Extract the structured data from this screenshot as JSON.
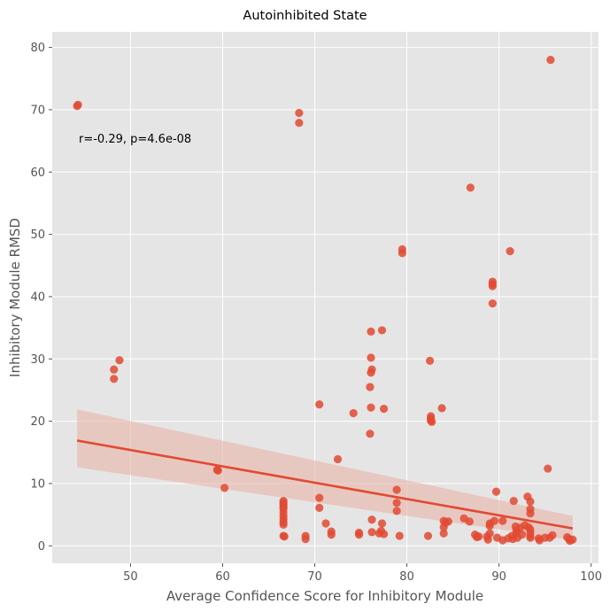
{
  "chart_data": {
    "type": "scatter",
    "title": "Autoinhibited State",
    "xlabel": "Average Confidence Score for Inhibitory Module",
    "ylabel": "Inhibitory Module RMSD",
    "xlim": [
      41.5,
      100.8
    ],
    "ylim": [
      -2.8,
      82.5
    ],
    "xticks": [
      50,
      60,
      70,
      80,
      90,
      100
    ],
    "yticks": [
      0,
      10,
      20,
      30,
      40,
      50,
      60,
      70,
      80
    ],
    "grid": true,
    "annotation": "r=-0.29, p=4.6e-08",
    "colors": {
      "background": "#e5e5e5",
      "grid": "#ffffff",
      "points": "#e24a33",
      "regression": "#e24a33",
      "confidence_band": "#e8b4a9"
    },
    "regression": {
      "x": [
        44.2,
        98.0
      ],
      "y": [
        16.9,
        2.8
      ],
      "ci_lower": [
        12.6,
        0.9
      ],
      "ci_upper": [
        21.9,
        4.8
      ]
    },
    "points": [
      {
        "x": 44.2,
        "y": 70.6
      },
      {
        "x": 44.3,
        "y": 70.8
      },
      {
        "x": 48.2,
        "y": 28.3
      },
      {
        "x": 48.2,
        "y": 26.8
      },
      {
        "x": 48.8,
        "y": 29.8
      },
      {
        "x": 59.4,
        "y": 12.2
      },
      {
        "x": 59.5,
        "y": 12.1
      },
      {
        "x": 60.2,
        "y": 9.3
      },
      {
        "x": 66.6,
        "y": 7.2
      },
      {
        "x": 66.6,
        "y": 6.9
      },
      {
        "x": 66.6,
        "y": 6.6
      },
      {
        "x": 66.6,
        "y": 6.3
      },
      {
        "x": 66.6,
        "y": 6.0
      },
      {
        "x": 66.6,
        "y": 5.4
      },
      {
        "x": 66.6,
        "y": 4.8
      },
      {
        "x": 66.6,
        "y": 4.3
      },
      {
        "x": 66.6,
        "y": 3.8
      },
      {
        "x": 66.6,
        "y": 3.4
      },
      {
        "x": 66.6,
        "y": 1.6
      },
      {
        "x": 66.7,
        "y": 1.5
      },
      {
        "x": 68.3,
        "y": 69.5
      },
      {
        "x": 68.3,
        "y": 67.9
      },
      {
        "x": 69.0,
        "y": 1.6
      },
      {
        "x": 69.0,
        "y": 1.1
      },
      {
        "x": 70.5,
        "y": 22.7
      },
      {
        "x": 70.5,
        "y": 7.7
      },
      {
        "x": 70.5,
        "y": 6.1
      },
      {
        "x": 71.2,
        "y": 3.6
      },
      {
        "x": 71.8,
        "y": 2.3
      },
      {
        "x": 71.8,
        "y": 1.8
      },
      {
        "x": 72.5,
        "y": 13.9
      },
      {
        "x": 74.2,
        "y": 21.3
      },
      {
        "x": 74.8,
        "y": 2.1
      },
      {
        "x": 74.8,
        "y": 1.8
      },
      {
        "x": 76.1,
        "y": 34.4
      },
      {
        "x": 76.1,
        "y": 30.2
      },
      {
        "x": 76.2,
        "y": 28.3
      },
      {
        "x": 76.1,
        "y": 27.8
      },
      {
        "x": 76.0,
        "y": 25.5
      },
      {
        "x": 76.1,
        "y": 22.2
      },
      {
        "x": 76.0,
        "y": 18.0
      },
      {
        "x": 76.2,
        "y": 4.2
      },
      {
        "x": 76.2,
        "y": 2.2
      },
      {
        "x": 77.3,
        "y": 34.6
      },
      {
        "x": 77.5,
        "y": 22.0
      },
      {
        "x": 77.3,
        "y": 3.6
      },
      {
        "x": 77.2,
        "y": 2.4
      },
      {
        "x": 77.0,
        "y": 2.0
      },
      {
        "x": 77.5,
        "y": 1.9
      },
      {
        "x": 78.9,
        "y": 9.0
      },
      {
        "x": 78.9,
        "y": 6.9
      },
      {
        "x": 78.9,
        "y": 5.6
      },
      {
        "x": 79.2,
        "y": 1.6
      },
      {
        "x": 79.5,
        "y": 47.6
      },
      {
        "x": 79.5,
        "y": 47.0
      },
      {
        "x": 82.3,
        "y": 1.6
      },
      {
        "x": 82.5,
        "y": 29.7
      },
      {
        "x": 82.6,
        "y": 20.8
      },
      {
        "x": 82.6,
        "y": 20.4
      },
      {
        "x": 82.6,
        "y": 20.1
      },
      {
        "x": 82.7,
        "y": 19.9
      },
      {
        "x": 83.8,
        "y": 22.1
      },
      {
        "x": 84.0,
        "y": 4.0
      },
      {
        "x": 84.2,
        "y": 3.7
      },
      {
        "x": 84.0,
        "y": 3.0
      },
      {
        "x": 84.0,
        "y": 2.0
      },
      {
        "x": 84.5,
        "y": 3.9
      },
      {
        "x": 86.2,
        "y": 4.4
      },
      {
        "x": 86.8,
        "y": 3.9
      },
      {
        "x": 86.9,
        "y": 57.5
      },
      {
        "x": 87.4,
        "y": 1.8
      },
      {
        "x": 87.6,
        "y": 1.4
      },
      {
        "x": 87.8,
        "y": 1.5
      },
      {
        "x": 88.7,
        "y": 1.5
      },
      {
        "x": 88.8,
        "y": 1.0
      },
      {
        "x": 89.0,
        "y": 3.2
      },
      {
        "x": 89.0,
        "y": 3.6
      },
      {
        "x": 89.0,
        "y": 2.0
      },
      {
        "x": 89.3,
        "y": 42.4
      },
      {
        "x": 89.3,
        "y": 42.0
      },
      {
        "x": 89.3,
        "y": 41.7
      },
      {
        "x": 89.3,
        "y": 38.9
      },
      {
        "x": 89.5,
        "y": 4.0
      },
      {
        "x": 89.7,
        "y": 8.7
      },
      {
        "x": 89.8,
        "y": 1.3
      },
      {
        "x": 90.4,
        "y": 4.0
      },
      {
        "x": 90.4,
        "y": 0.9
      },
      {
        "x": 91.0,
        "y": 1.2
      },
      {
        "x": 91.2,
        "y": 47.3
      },
      {
        "x": 91.4,
        "y": 1.6
      },
      {
        "x": 91.5,
        "y": 1.1
      },
      {
        "x": 91.6,
        "y": 7.2
      },
      {
        "x": 91.8,
        "y": 3.1
      },
      {
        "x": 91.9,
        "y": 2.5
      },
      {
        "x": 91.9,
        "y": 2.0
      },
      {
        "x": 92.0,
        "y": 1.3
      },
      {
        "x": 92.3,
        "y": 2.9
      },
      {
        "x": 92.5,
        "y": 1.8
      },
      {
        "x": 92.8,
        "y": 3.3
      },
      {
        "x": 93.1,
        "y": 7.9
      },
      {
        "x": 93.2,
        "y": 3.0
      },
      {
        "x": 93.4,
        "y": 7.1
      },
      {
        "x": 93.4,
        "y": 5.9
      },
      {
        "x": 93.4,
        "y": 5.2
      },
      {
        "x": 93.4,
        "y": 2.6
      },
      {
        "x": 93.4,
        "y": 2.1
      },
      {
        "x": 93.4,
        "y": 1.6
      },
      {
        "x": 93.4,
        "y": 1.3
      },
      {
        "x": 94.3,
        "y": 1.2
      },
      {
        "x": 94.4,
        "y": 0.9
      },
      {
        "x": 95.0,
        "y": 1.3
      },
      {
        "x": 95.3,
        "y": 12.4
      },
      {
        "x": 95.5,
        "y": 1.3
      },
      {
        "x": 95.6,
        "y": 78.0
      },
      {
        "x": 95.8,
        "y": 1.7
      },
      {
        "x": 97.4,
        "y": 1.4
      },
      {
        "x": 97.6,
        "y": 1.1
      },
      {
        "x": 97.7,
        "y": 0.8
      },
      {
        "x": 98.0,
        "y": 1.0
      }
    ]
  }
}
